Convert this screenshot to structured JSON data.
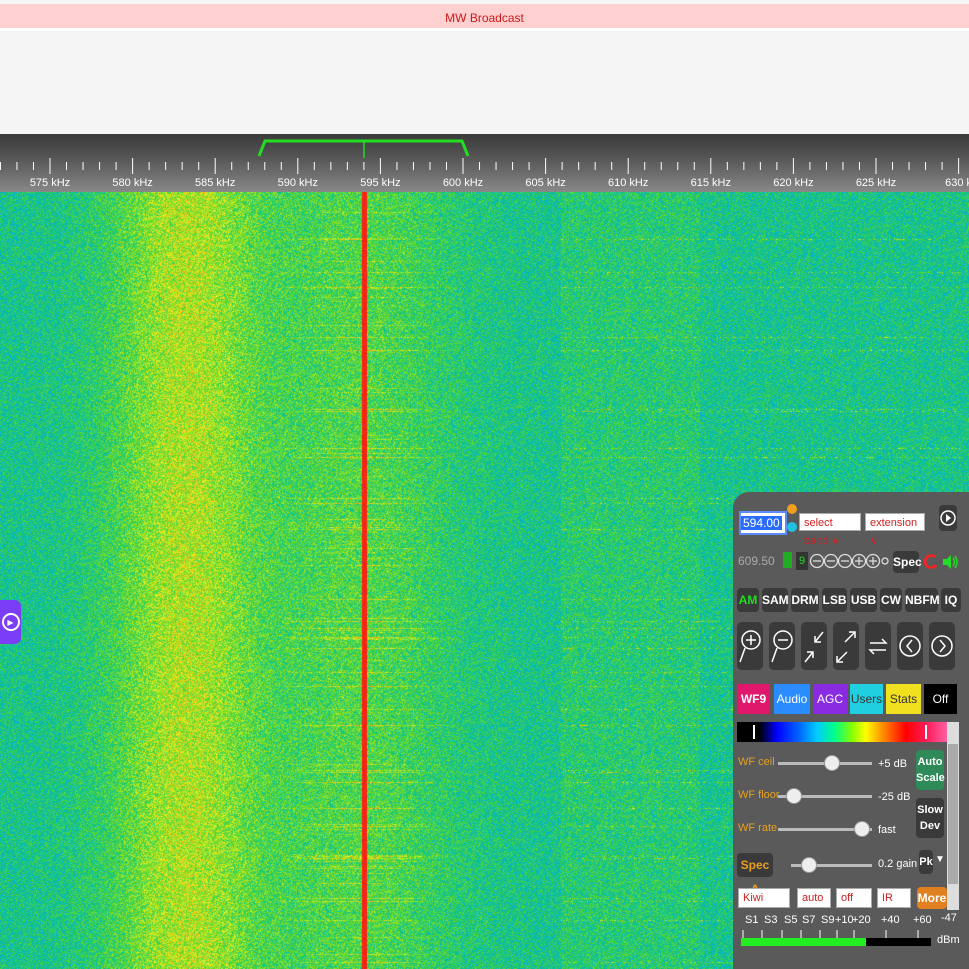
{
  "title_bar": {
    "text": "MW Broadcast"
  },
  "scale": {
    "unit": "kHz",
    "labels": [
      "575 kHz",
      "580 kHz",
      "585 kHz",
      "590 kHz",
      "595 kHz",
      "600 kHz",
      "605 kHz",
      "610 kHz",
      "615 kHz",
      "620 kHz",
      "625 kHz",
      "630 k"
    ],
    "passband_color": "#22dd22"
  },
  "panel": {
    "frequency": "594.00",
    "band_select": "select band",
    "extension_select": "extension",
    "sub_frequency": "609.50",
    "zoom_level": "9",
    "spec_label": "Spec",
    "modes": [
      "AM",
      "SAM",
      "DRM",
      "LSB",
      "USB",
      "CW",
      "NBFM",
      "IQ"
    ],
    "active_mode": "AM",
    "tabs": [
      {
        "label": "WF9",
        "color": "#e0186c"
      },
      {
        "label": "Audio",
        "color": "#2a8cff"
      },
      {
        "label": "AGC",
        "color": "#8a2be2"
      },
      {
        "label": "Users",
        "color": "#20d0e0"
      },
      {
        "label": "Stats",
        "color": "#f0e020"
      },
      {
        "label": "Off",
        "color": "#000000"
      }
    ],
    "wf_ceil": {
      "label": "WF ceil",
      "value": "+5 dB",
      "level": 0.58
    },
    "wf_floor": {
      "label": "WF floor",
      "value": "-25 dB",
      "level": 0.1
    },
    "wf_rate": {
      "label": "WF rate",
      "value": "fast",
      "level": 0.95
    },
    "spec_delta": {
      "label": "Spec Δ",
      "value": "0.2 gain",
      "level": 0.15
    },
    "auto_scale": "Auto Scale",
    "slow_dev": "Slow Dev",
    "pk": "Pk",
    "bottom_selects": [
      "Kiwi",
      "auto",
      "off",
      "IR"
    ],
    "more": "More",
    "smeter": {
      "labels": [
        "S1",
        "S3",
        "S5",
        "S7",
        "S9",
        "+10",
        "+20",
        "+40",
        "+60"
      ],
      "value": "-47",
      "unit": "dBm",
      "level": 0.66
    }
  }
}
